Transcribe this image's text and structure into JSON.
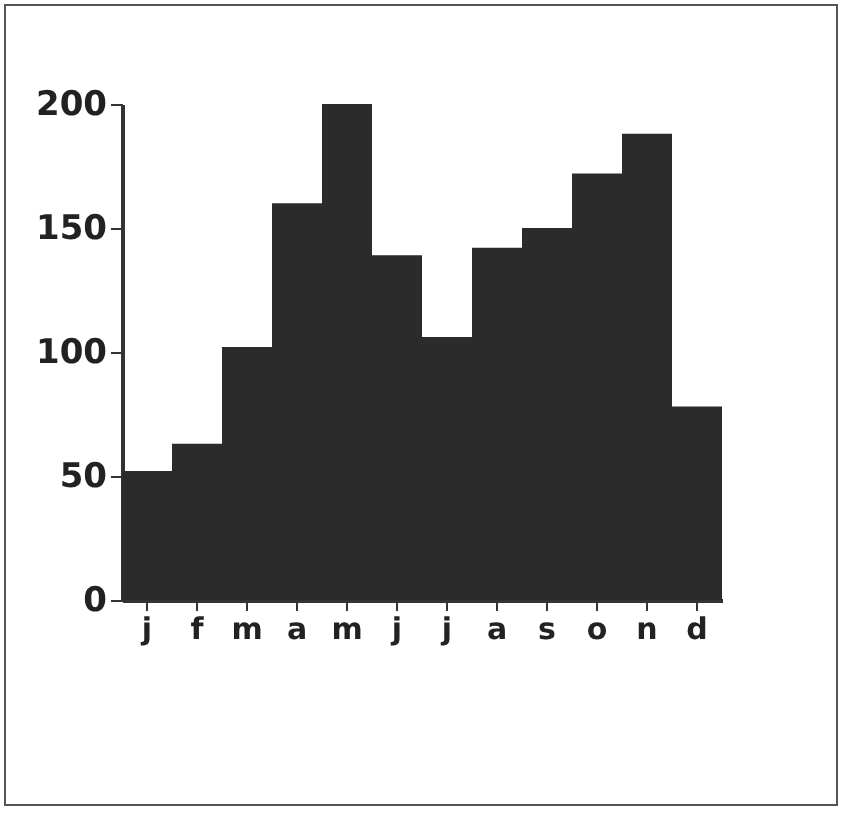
{
  "chart_data": {
    "type": "bar",
    "categories": [
      "j",
      "f",
      "m",
      "a",
      "m",
      "j",
      "j",
      "a",
      "s",
      "o",
      "n",
      "d"
    ],
    "values": [
      52,
      63,
      102,
      160,
      200,
      139,
      106,
      142,
      150,
      172,
      188,
      78
    ],
    "color": "#2b2b2b",
    "ylim": [
      0,
      200
    ],
    "yticks": [
      0,
      50,
      100,
      150,
      200
    ],
    "grid": false
  }
}
